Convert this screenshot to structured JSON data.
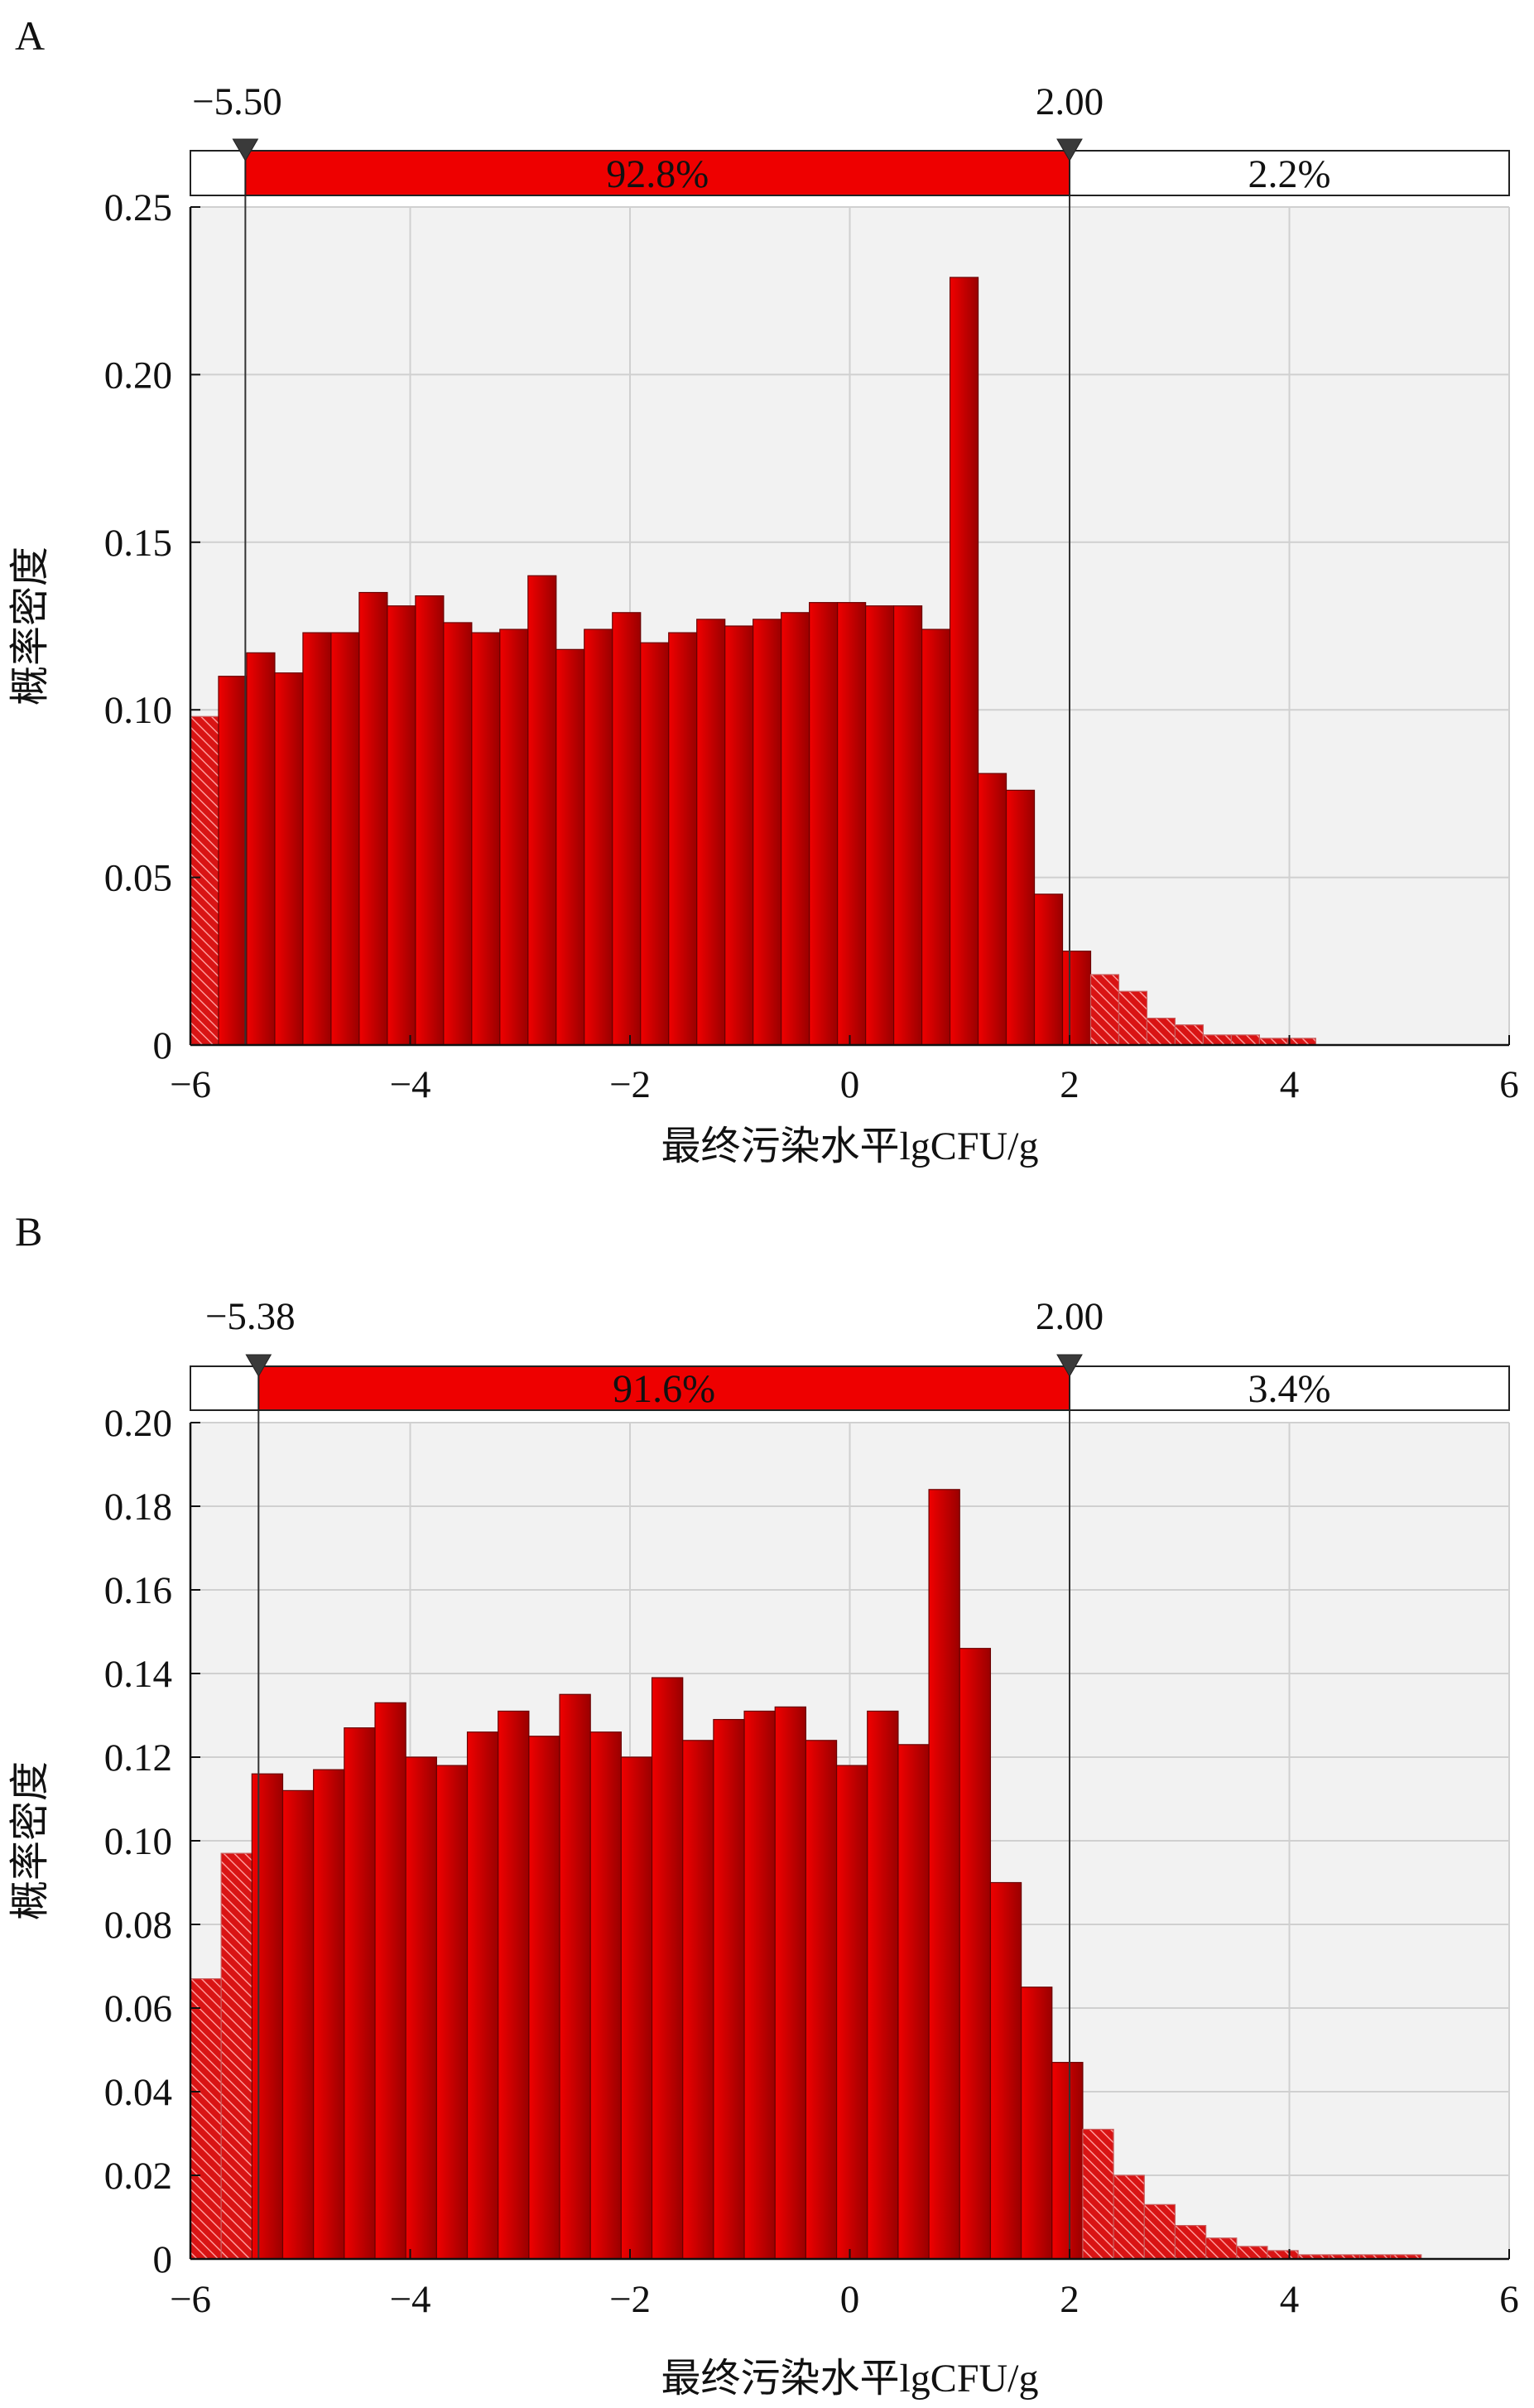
{
  "panels": [
    {
      "letter": "A"
    },
    {
      "letter": "B"
    }
  ],
  "chart_data": [
    {
      "type": "bar",
      "panel": "A",
      "xlabel": "最终污染水平lgCFU/g",
      "ylabel": "概率密度",
      "xlim": [
        -6,
        6
      ],
      "ylim": [
        0,
        0.25
      ],
      "xticks": [
        -6,
        -4,
        -2,
        0,
        2,
        4,
        6
      ],
      "xtick_labels": [
        "−6",
        "−4",
        "−2",
        "0",
        "2",
        "4",
        "6"
      ],
      "yticks": [
        0,
        0.05,
        0.1,
        0.15,
        0.2,
        0.25
      ],
      "ytick_labels": [
        "0",
        "0.05",
        "0.10",
        "0.15",
        "0.20",
        "0.25"
      ],
      "grid": true,
      "bin_start": -6.0,
      "bin_width": 0.256,
      "values": [
        0.098,
        0.11,
        0.117,
        0.111,
        0.123,
        0.123,
        0.135,
        0.131,
        0.134,
        0.126,
        0.123,
        0.124,
        0.14,
        0.118,
        0.124,
        0.129,
        0.12,
        0.123,
        0.127,
        0.125,
        0.127,
        0.129,
        0.132,
        0.132,
        0.131,
        0.131,
        0.124,
        0.229,
        0.081,
        0.076,
        0.045,
        0.028,
        0.021,
        0.016,
        0.008,
        0.006,
        0.003,
        0.003,
        0.002,
        0.002,
        0.0,
        0.0,
        0.0,
        0.0,
        0.0,
        0.0,
        0.0
      ],
      "lower_cut": -5.5,
      "upper_cut": 2.0,
      "lower_cut_label": "−5.50",
      "upper_cut_label": "2.00",
      "middle_pct_label": "92.8%",
      "right_pct_label": "2.2%",
      "fill_color": "#d40000",
      "band_color": "#ee0000"
    },
    {
      "type": "bar",
      "panel": "B",
      "xlabel": "最终污染水平lgCFU/g",
      "ylabel": "概率密度",
      "xlim": [
        -6,
        6
      ],
      "ylim": [
        0,
        0.2
      ],
      "xticks": [
        -6,
        -4,
        -2,
        0,
        2,
        4,
        6
      ],
      "xtick_labels": [
        "−6",
        "−4",
        "−2",
        "0",
        "2",
        "4",
        "6"
      ],
      "yticks": [
        0,
        0.02,
        0.04,
        0.06,
        0.08,
        0.1,
        0.12,
        0.14,
        0.16,
        0.18,
        0.2
      ],
      "ytick_labels": [
        "0",
        "0.02",
        "0.04",
        "0.06",
        "0.08",
        "0.10",
        "0.12",
        "0.14",
        "0.16",
        "0.18",
        "0.20"
      ],
      "grid": true,
      "bin_start": -6.0,
      "bin_width": 0.28,
      "values": [
        0.067,
        0.097,
        0.116,
        0.112,
        0.117,
        0.127,
        0.133,
        0.12,
        0.118,
        0.126,
        0.131,
        0.125,
        0.135,
        0.126,
        0.12,
        0.139,
        0.124,
        0.129,
        0.131,
        0.132,
        0.124,
        0.118,
        0.131,
        0.123,
        0.184,
        0.146,
        0.09,
        0.065,
        0.047,
        0.031,
        0.02,
        0.013,
        0.008,
        0.005,
        0.003,
        0.002,
        0.001,
        0.001,
        0.001,
        0.001,
        0.0,
        0.0,
        0.0
      ],
      "lower_cut": -5.38,
      "upper_cut": 2.0,
      "lower_cut_label": "−5.38",
      "upper_cut_label": "2.00",
      "middle_pct_label": "91.6%",
      "right_pct_label": "3.4%",
      "fill_color": "#d40000",
      "band_color": "#ee0000"
    }
  ]
}
